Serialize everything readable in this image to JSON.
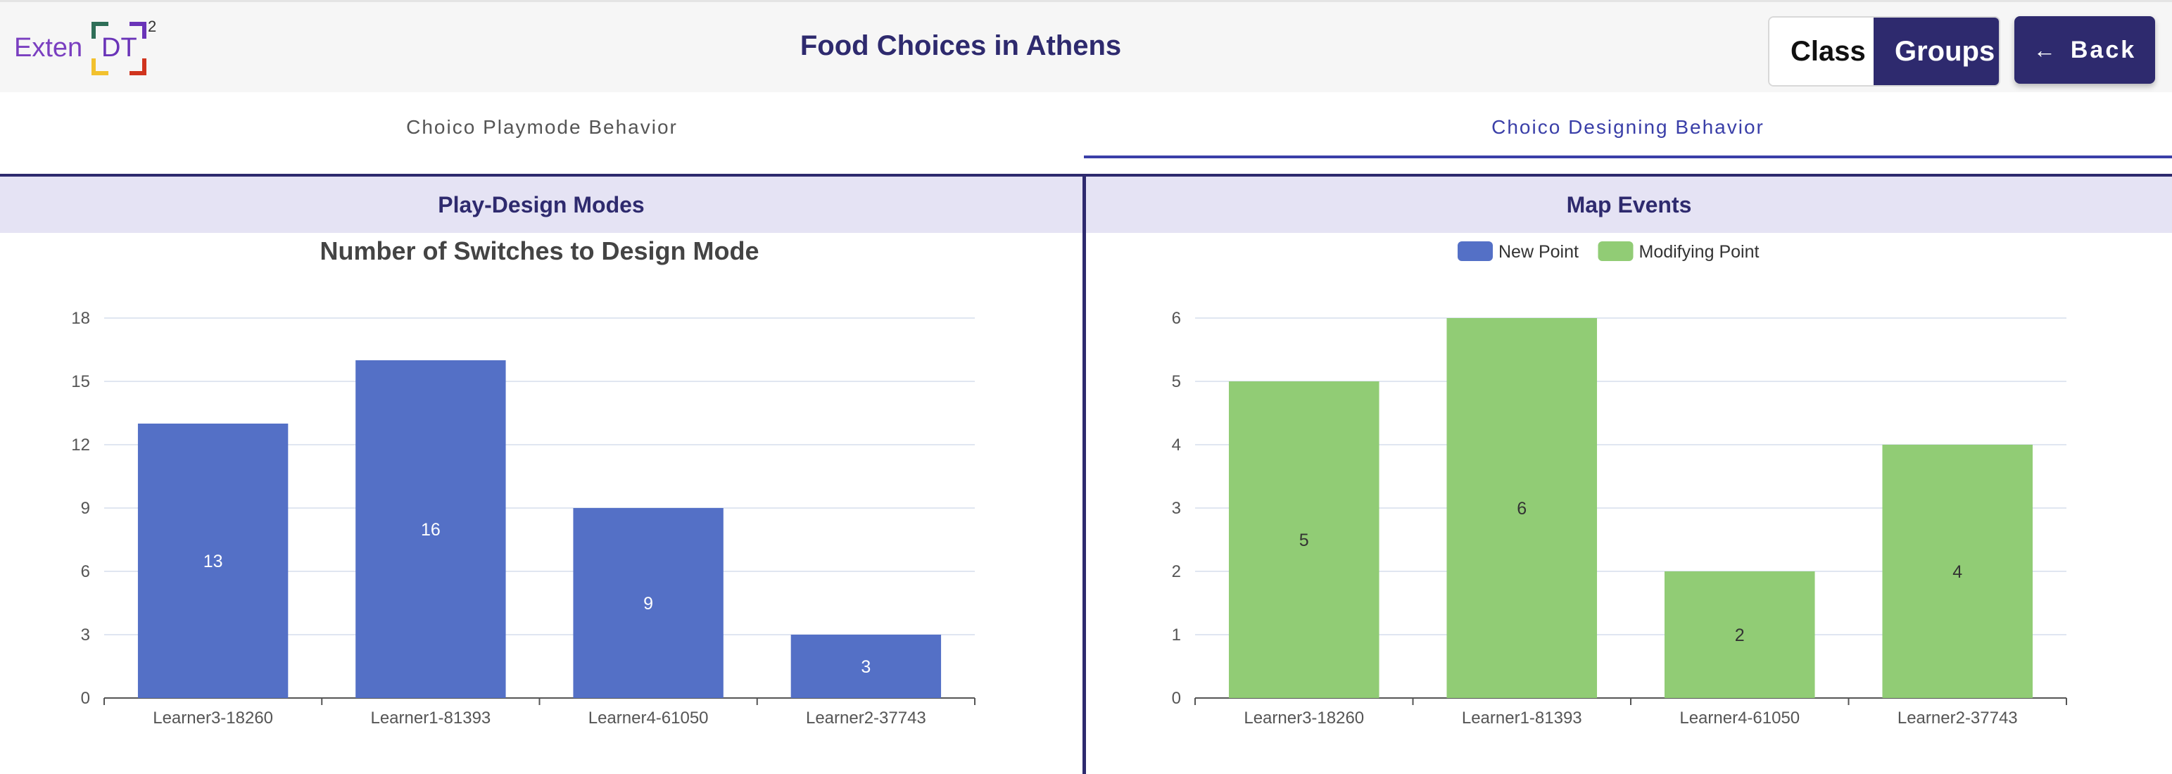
{
  "header": {
    "logo_text": "Exten",
    "logo_dt": "DT",
    "logo_sup": "2",
    "title": "Food Choices in Athens",
    "class_label": "Class",
    "groups_label": "Groups",
    "back_label": "Back",
    "back_icon": "arrow-left-icon"
  },
  "tabs": [
    {
      "label": "Choico Playmode Behavior",
      "active": false
    },
    {
      "label": "Choico Designing Behavior",
      "active": true
    }
  ],
  "panels": {
    "left_title": "Play-Design Modes",
    "right_title": "Map Events"
  },
  "colors": {
    "accent": "#2e2a6e",
    "blue": "#5470c6",
    "green": "#91cc75"
  },
  "chart_data": [
    {
      "type": "bar",
      "title": "Number of Switches to Design Mode",
      "categories": [
        "Learner3-18260",
        "Learner1-81393",
        "Learner4-61050",
        "Learner2-37743"
      ],
      "values": [
        13,
        16,
        9,
        3
      ],
      "yticks": [
        0,
        3,
        6,
        9,
        12,
        15,
        18
      ],
      "ylim": [
        0,
        18
      ],
      "color": "#5470c6",
      "label_color": "#ffffff"
    },
    {
      "type": "bar",
      "title": "",
      "categories": [
        "Learner3-18260",
        "Learner1-81393",
        "Learner4-61050",
        "Learner2-37743"
      ],
      "series": [
        {
          "name": "New Point",
          "color": "#5470c6",
          "values": [
            0,
            0,
            0,
            0
          ]
        },
        {
          "name": "Modifying Point",
          "color": "#91cc75",
          "values": [
            5,
            6,
            2,
            4
          ]
        }
      ],
      "legend": [
        "New Point",
        "Modifying Point"
      ],
      "yticks": [
        0,
        1,
        2,
        3,
        4,
        5,
        6
      ],
      "ylim": [
        0,
        6
      ],
      "label_color": "#333333"
    }
  ]
}
